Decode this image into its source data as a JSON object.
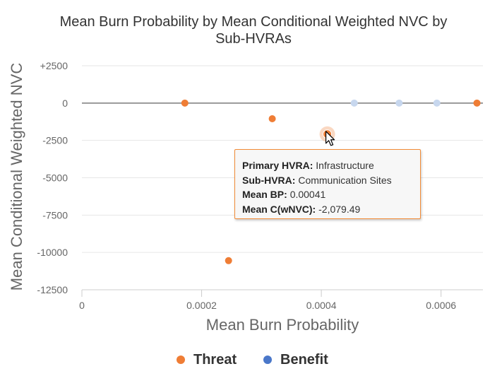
{
  "colors": {
    "threat": "#ef7d35",
    "benefit": "#4a77c9",
    "benefit_faded": "#c7d7ee",
    "grid": "#e6e6e6",
    "zero_line": "#999999",
    "axis_text": "#666666",
    "title_text": "#333333"
  },
  "chart_data": {
    "type": "scatter",
    "title": "Mean Burn Probability by Mean Conditional Weighted NVC by Sub-HVRAs",
    "title_lines": [
      "Mean Burn Probability by Mean Conditional Weighted NVC by",
      "Sub-HVRAs"
    ],
    "xlabel": "Mean Burn Probability",
    "ylabel": "Mean Conditional Weighted NVC",
    "xlim": [
      0,
      0.00067
    ],
    "ylim": [
      -12500,
      2500
    ],
    "x_ticks": [
      {
        "value": 0,
        "label": "0"
      },
      {
        "value": 0.0002,
        "label": "0.0002"
      },
      {
        "value": 0.0004,
        "label": "0.0004"
      },
      {
        "value": 0.0006,
        "label": "0.0006"
      }
    ],
    "y_ticks": [
      {
        "value": 2500,
        "label": "+2500"
      },
      {
        "value": 0,
        "label": "0"
      },
      {
        "value": -2500,
        "label": "-2500"
      },
      {
        "value": -5000,
        "label": "-5000"
      },
      {
        "value": -7500,
        "label": "-7500"
      },
      {
        "value": -10000,
        "label": "-10000"
      },
      {
        "value": -12500,
        "label": "-12500"
      }
    ],
    "grid": true,
    "legend_position": "bottom-center",
    "series": [
      {
        "name": "Threat",
        "points": [
          {
            "x": 0.000172,
            "y": 0
          },
          {
            "x": 0.000245,
            "y": -10550
          },
          {
            "x": 0.000318,
            "y": -1050
          },
          {
            "x": 0.00041,
            "y": -2079.49,
            "highlighted": true
          },
          {
            "x": 0.00066,
            "y": 0
          }
        ]
      },
      {
        "name": "Benefit",
        "points": [
          {
            "x": 0.000455,
            "y": 0
          },
          {
            "x": 0.00053,
            "y": 0
          },
          {
            "x": 0.000593,
            "y": 0
          }
        ]
      }
    ]
  },
  "tooltip": {
    "primary_label": "Primary HVRA:",
    "primary_value": "Infrastructure",
    "sub_label": "Sub-HVRA:",
    "sub_value": "Communication Sites",
    "bp_label": "Mean BP:",
    "bp_value": "0.00041",
    "cw_label": "Mean C(wNVC):",
    "cw_value": "-2,079.49"
  },
  "legend": {
    "items": [
      {
        "label": "Threat",
        "icon": "circle"
      },
      {
        "label": "Benefit",
        "icon": "circle"
      }
    ]
  }
}
